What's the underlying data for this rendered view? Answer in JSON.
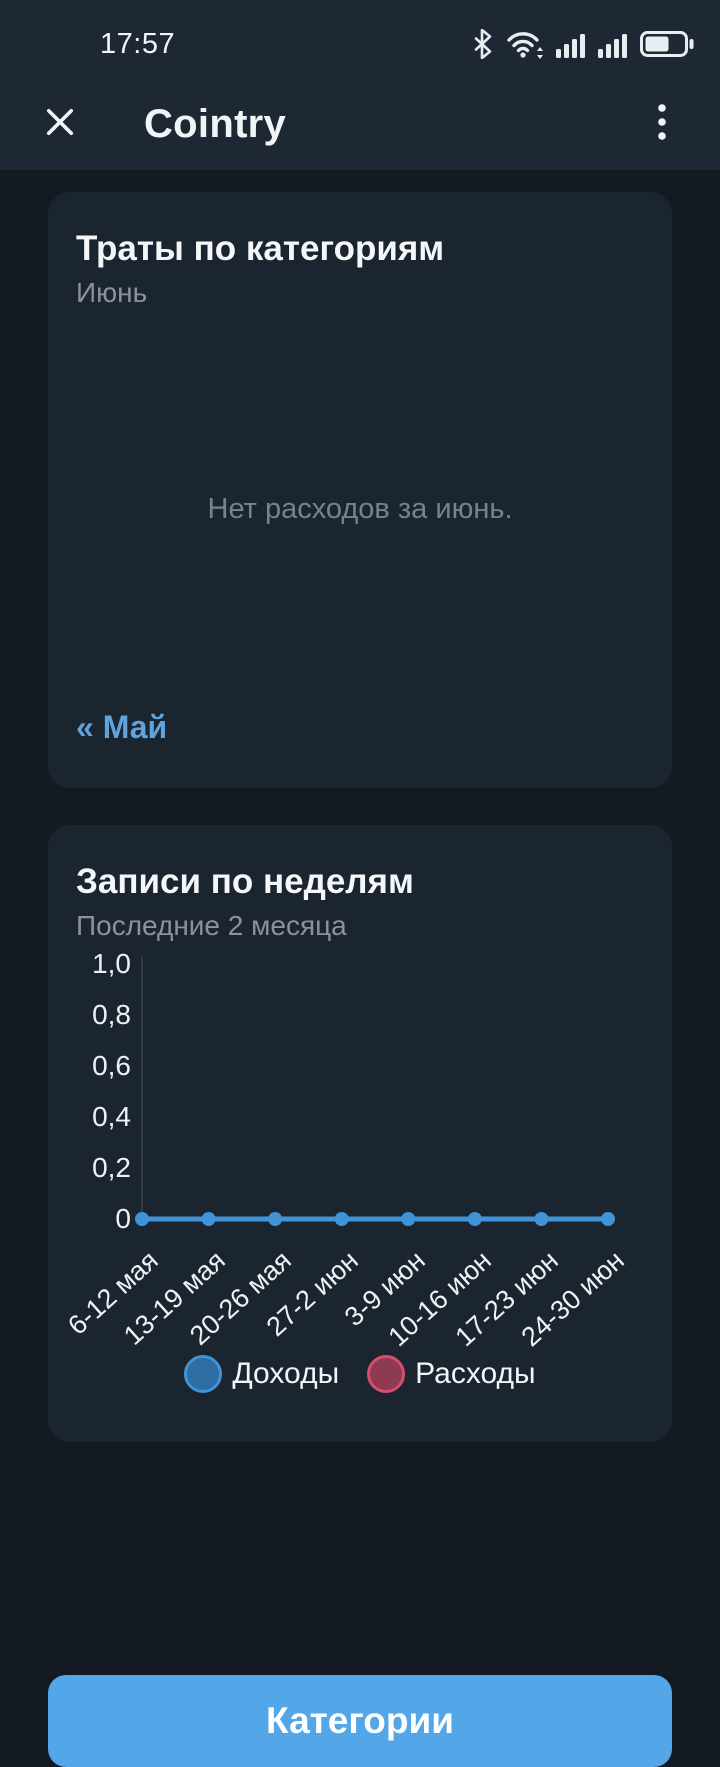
{
  "status_bar": {
    "time": "17:57",
    "icons": [
      "bluetooth-icon",
      "wifi-icon",
      "signal-icon",
      "signal-icon",
      "battery-icon"
    ]
  },
  "header": {
    "title": "Cointry",
    "close_icon": "close-x",
    "menu_icon": "kebab-vertical"
  },
  "expenses_card": {
    "title": "Траты по категориям",
    "subtitle": "Июнь",
    "empty_text": "Нет расходов за июнь.",
    "prev_month_link": "« Май"
  },
  "weekly_card": {
    "title": "Записи по неделям",
    "subtitle": "Последние 2 месяца"
  },
  "chart_data": {
    "type": "line",
    "title": "Записи по неделям",
    "subtitle": "Последние 2 месяца",
    "categories": [
      "6-12 мая",
      "13-19 мая",
      "20-26 мая",
      "27-2 июн",
      "3-9 июн",
      "10-16 июн",
      "17-23 июн",
      "24-30 июн"
    ],
    "series": [
      {
        "name": "Доходы",
        "values": [
          0,
          0,
          0,
          0,
          0,
          0,
          0,
          0
        ],
        "color": "#3f93d6",
        "fill": "#2e6da4",
        "drawn": true
      },
      {
        "name": "Расходы",
        "values": [],
        "color": "#d64d6e",
        "fill": "#8e3a52",
        "drawn": false
      }
    ],
    "yticks": [
      "1,0",
      "0,8",
      "0,6",
      "0,4",
      "0,2",
      "0"
    ],
    "ylim": [
      0,
      1
    ],
    "grid": false,
    "legend_position": "bottom"
  },
  "footer": {
    "categories_button": "Категории"
  },
  "colors": {
    "topbar_bg": "#1d2834",
    "page_bg": "#131a22",
    "card_bg": "#1b2530",
    "accent_blue": "#53a6e8",
    "link_blue": "#5fa3dd",
    "income_line": "#3f93d6",
    "expense_pink": "#d64d6e"
  }
}
